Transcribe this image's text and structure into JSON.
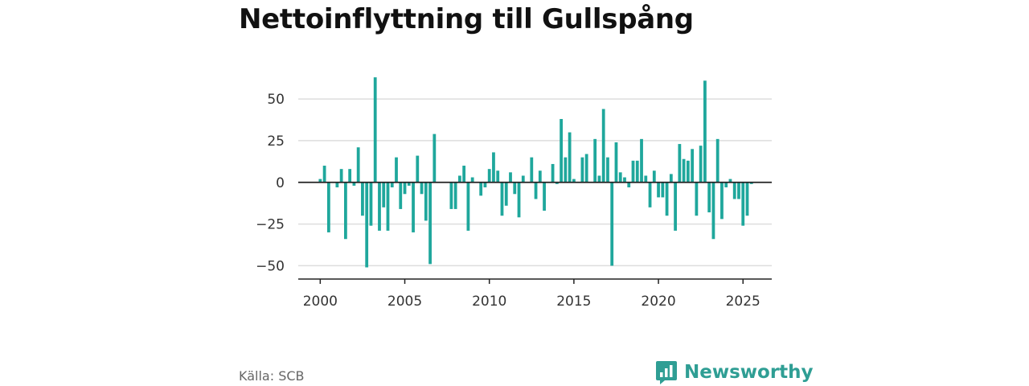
{
  "title": "Nettoinflyttning till Gullspång",
  "source": "Källa: SCB",
  "brand": {
    "name": "Newsworthy",
    "icon": "newsworthy-logo-icon",
    "color": "#2f9e94"
  },
  "colors": {
    "bar": "#1fa79c",
    "grid": "#dddddd",
    "axis": "#222222"
  },
  "chart_data": {
    "type": "bar",
    "frequency": "quarterly",
    "x_start": 2000.0,
    "x_step": 0.25,
    "xticks": [
      2000,
      2005,
      2010,
      2015,
      2020,
      2025
    ],
    "yticks": [
      -50,
      -25,
      0,
      25,
      50
    ],
    "ylim": [
      -58,
      65
    ],
    "xlim": [
      1998.7,
      2026.7
    ],
    "title": "Nettoinflyttning till Gullspång",
    "xlabel": "",
    "ylabel": "",
    "grid": true,
    "values": [
      2,
      10,
      -30,
      0,
      -3,
      8,
      -34,
      8,
      -2,
      21,
      -20,
      -51,
      -26,
      63,
      -29,
      -15,
      -29,
      -3,
      15,
      -16,
      -7,
      -2,
      -30,
      16,
      -7,
      -23,
      -49,
      29,
      0,
      0,
      0,
      -16,
      -16,
      4,
      10,
      -29,
      3,
      0,
      -8,
      -3,
      8,
      18,
      7,
      -20,
      -14,
      6,
      -7,
      -21,
      4,
      0,
      15,
      -10,
      7,
      -17,
      0,
      11,
      -1,
      38,
      15,
      30,
      2,
      0,
      15,
      17,
      0,
      26,
      4,
      44,
      15,
      -50,
      24,
      6,
      3,
      -3,
      13,
      13,
      26,
      4,
      -15,
      7,
      -9,
      -9,
      -20,
      5,
      -29,
      23,
      14,
      13,
      20,
      -20,
      22,
      61,
      -18,
      -34,
      26,
      -22,
      -3,
      2,
      -10,
      -10,
      -26,
      -20,
      -1
    ]
  }
}
